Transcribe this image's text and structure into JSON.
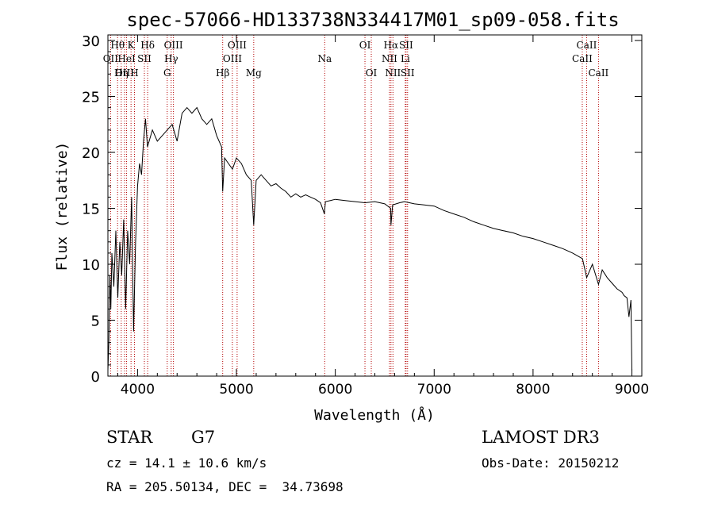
{
  "chart_data": {
    "type": "line",
    "title": "spec-57066-HD133738N334417M01_sp09-058.fits",
    "xlabel": "Wavelength (Å)",
    "ylabel": "Flux (relative)",
    "xlim": [
      3700,
      9100
    ],
    "ylim": [
      0,
      30.5
    ],
    "xticks": [
      4000,
      5000,
      6000,
      7000,
      8000,
      9000
    ],
    "yticks": [
      0,
      5,
      10,
      15,
      20,
      25,
      30
    ],
    "series": [
      {
        "name": "spectrum",
        "color": "#000000",
        "x": [
          3700,
          3710,
          3720,
          3730,
          3740,
          3760,
          3780,
          3800,
          3820,
          3840,
          3860,
          3880,
          3900,
          3920,
          3940,
          3960,
          3980,
          4000,
          4020,
          4040,
          4060,
          4080,
          4100,
          4150,
          4200,
          4250,
          4300,
          4350,
          4400,
          4450,
          4500,
          4550,
          4600,
          4650,
          4700,
          4750,
          4800,
          4850,
          4861,
          4880,
          4920,
          4960,
          5000,
          5050,
          5100,
          5150,
          5175,
          5200,
          5250,
          5300,
          5350,
          5400,
          5450,
          5500,
          5550,
          5600,
          5650,
          5700,
          5750,
          5800,
          5850,
          5890,
          5900,
          5950,
          6000,
          6100,
          6200,
          6300,
          6400,
          6500,
          6560,
          6563,
          6580,
          6650,
          6700,
          6750,
          6800,
          6900,
          7000,
          7100,
          7200,
          7300,
          7400,
          7500,
          7600,
          7700,
          7800,
          7900,
          8000,
          8100,
          8200,
          8300,
          8400,
          8500,
          8542,
          8600,
          8662,
          8700,
          8750,
          8800,
          8850,
          8900,
          8920,
          8950,
          8970,
          8990,
          9000
        ],
        "y": [
          0.5,
          3.0,
          9.0,
          6.0,
          11.0,
          8.0,
          13.0,
          7.0,
          12.0,
          9.0,
          14.0,
          6.0,
          13.0,
          10.0,
          16.0,
          4.0,
          12.0,
          17.0,
          19.0,
          18.0,
          21.0,
          23.0,
          20.5,
          22.0,
          21.0,
          21.5,
          22.0,
          22.5,
          21.0,
          23.5,
          24.0,
          23.5,
          24.0,
          23.0,
          22.5,
          23.0,
          21.5,
          20.5,
          16.5,
          19.5,
          19.0,
          18.5,
          19.5,
          19.0,
          18.0,
          17.5,
          13.5,
          17.5,
          18.0,
          17.5,
          17.0,
          17.2,
          16.8,
          16.5,
          16.0,
          16.3,
          16.0,
          16.2,
          16.0,
          15.8,
          15.5,
          14.5,
          15.6,
          15.7,
          15.8,
          15.7,
          15.6,
          15.5,
          15.6,
          15.4,
          15.0,
          13.5,
          15.3,
          15.5,
          15.6,
          15.5,
          15.4,
          15.3,
          15.2,
          14.8,
          14.5,
          14.2,
          13.8,
          13.5,
          13.2,
          13.0,
          12.8,
          12.5,
          12.3,
          12.0,
          11.7,
          11.4,
          11.0,
          10.5,
          8.8,
          10.0,
          8.2,
          9.5,
          8.8,
          8.3,
          7.8,
          7.5,
          7.2,
          7.0,
          5.3,
          6.8,
          0.5
        ]
      }
    ],
    "annotations": [
      {
        "label": "Hθ",
        "wavelength": 3798,
        "row": 1
      },
      {
        "label": "OII",
        "wavelength": 3727,
        "row": 2
      },
      {
        "label": "OIII",
        "wavelength": 3869,
        "row": 3
      },
      {
        "label": "Hη",
        "wavelength": 3835,
        "row": 3
      },
      {
        "label": "K",
        "wavelength": 3934,
        "row": 1
      },
      {
        "label": "HeI",
        "wavelength": 3889,
        "row": 2
      },
      {
        "label": "SII",
        "wavelength": 4069,
        "row": 2
      },
      {
        "label": "H",
        "wavelength": 3969,
        "row": 3
      },
      {
        "label": "Hδ",
        "wavelength": 4102,
        "row": 1
      },
      {
        "label": "OIII",
        "wavelength": 4363,
        "row": 1
      },
      {
        "label": "Hγ",
        "wavelength": 4340,
        "row": 2
      },
      {
        "label": "G",
        "wavelength": 4300,
        "row": 3
      },
      {
        "label": "OIII",
        "wavelength": 5007,
        "row": 1
      },
      {
        "label": "OIII",
        "wavelength": 4959,
        "row": 2
      },
      {
        "label": "Hβ",
        "wavelength": 4861,
        "row": 3
      },
      {
        "label": "Mg",
        "wavelength": 5175,
        "row": 3
      },
      {
        "label": "Na",
        "wavelength": 5893,
        "row": 2
      },
      {
        "label": "OI",
        "wavelength": 6300,
        "row": 1
      },
      {
        "label": "OI",
        "wavelength": 6364,
        "row": 3
      },
      {
        "label": "Hα",
        "wavelength": 6563,
        "row": 1
      },
      {
        "label": "NII",
        "wavelength": 6548,
        "row": 2
      },
      {
        "label": "NII",
        "wavelength": 6583,
        "row": 3
      },
      {
        "label": "SII",
        "wavelength": 6716,
        "row": 1
      },
      {
        "label": "Li",
        "wavelength": 6708,
        "row": 2
      },
      {
        "label": "SII",
        "wavelength": 6731,
        "row": 3
      },
      {
        "label": "CaII",
        "wavelength": 8542,
        "row": 1
      },
      {
        "label": "CaII",
        "wavelength": 8498,
        "row": 2
      },
      {
        "label": "CaII",
        "wavelength": 8662,
        "row": 3
      }
    ]
  },
  "info": {
    "class": "STAR",
    "subclass": "G7",
    "survey": "LAMOST DR3",
    "cz": "cz = 14.1 ± 10.6 km/s",
    "obs_date": "Obs-Date: 20150212",
    "radec": "RA = 205.50134, DEC =  34.73698"
  },
  "colors": {
    "line": "#000000",
    "marker": "#b40000"
  }
}
